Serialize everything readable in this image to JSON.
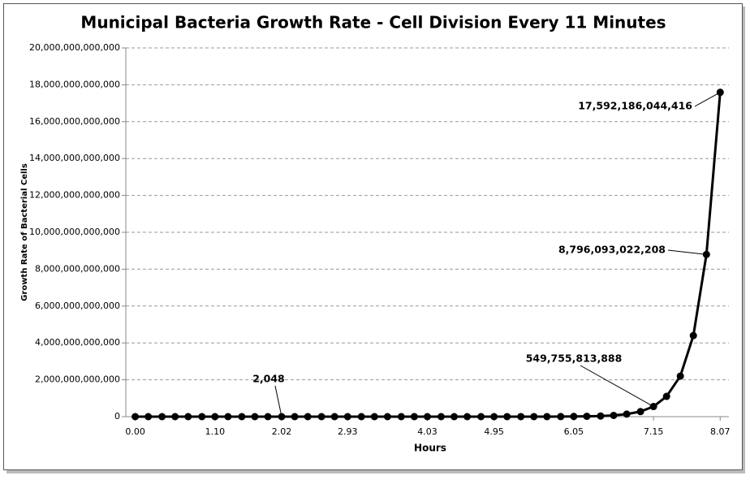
{
  "chart_data": {
    "type": "line",
    "title": "Municipal Bacteria Growth Rate - Cell Division Every 11 Minutes",
    "x_label": "Hours",
    "y_label": "Growth Rate of Bacterial Cells",
    "x": [
      0.0,
      0.18,
      0.37,
      0.55,
      0.73,
      0.92,
      1.1,
      1.28,
      1.47,
      1.65,
      1.83,
      2.02,
      2.2,
      2.38,
      2.57,
      2.75,
      2.93,
      3.12,
      3.3,
      3.48,
      3.67,
      3.85,
      4.03,
      4.22,
      4.4,
      4.58,
      4.77,
      4.95,
      5.13,
      5.32,
      5.5,
      5.68,
      5.87,
      6.05,
      6.23,
      6.42,
      6.6,
      6.78,
      6.97,
      7.15,
      7.33,
      7.52,
      7.7,
      7.88,
      8.07
    ],
    "series": [
      {
        "color": "#000000",
        "values": [
          1,
          2,
          4,
          8,
          16,
          32,
          64,
          128,
          256,
          512,
          1024,
          2048,
          4096,
          8192,
          16384,
          32768,
          65536,
          131072,
          262144,
          524288,
          1048576,
          2097152,
          4194304,
          8388608,
          16777216,
          33554432,
          67108864,
          134217728,
          268435456,
          536870912,
          1073741824,
          2147483648,
          4294967296,
          8589934592,
          17179869184,
          34359738368,
          68719476736,
          137438953472,
          274877906944,
          549755813888,
          1099511627776,
          2199023255552,
          4398046511104,
          8796093022208,
          17592186044416
        ],
        "value_labels": [
          null,
          null,
          null,
          null,
          null,
          null,
          null,
          null,
          null,
          null,
          null,
          "2,048",
          null,
          null,
          null,
          null,
          null,
          null,
          null,
          null,
          null,
          null,
          null,
          null,
          null,
          null,
          null,
          null,
          null,
          null,
          null,
          null,
          null,
          null,
          null,
          null,
          null,
          null,
          null,
          "549,755,813,888",
          null,
          null,
          null,
          "8,796,093,022,208",
          "17,592,186,044,416"
        ]
      }
    ],
    "xlim": [
      -0.13,
      8.19
    ],
    "xticks": [
      {
        "value": 0,
        "label": "0.00"
      },
      {
        "value": 1.1,
        "label": "1.10"
      },
      {
        "value": 2.02,
        "label": "2.02"
      },
      {
        "value": 2.93,
        "label": "2.93"
      },
      {
        "value": 4.03,
        "label": "4.03"
      },
      {
        "value": 4.95,
        "label": "4.95"
      },
      {
        "value": 6.05,
        "label": "6.05"
      },
      {
        "value": 7.15,
        "label": "7.15"
      },
      {
        "value": 8.07,
        "label": "8.07"
      }
    ],
    "ylim": [
      0,
      20000000000000
    ],
    "yticks": [
      0,
      {
        "value": 2000000000000,
        "label": "2,000,000,000,000"
      },
      {
        "value": 4000000000000,
        "label": "4,000,000,000,000"
      },
      {
        "value": 6000000000000,
        "label": "6,000,000,000,000"
      },
      {
        "value": 8000000000000,
        "label": "8,000,000,000,000"
      },
      {
        "value": 10000000000000,
        "label": "10,000,000,000,000"
      },
      {
        "value": 12000000000000,
        "label": "12,000,000,000,000"
      },
      {
        "value": 14000000000000,
        "label": "14,000,000,000,000"
      },
      {
        "value": 16000000000000,
        "label": "16,000,000,000,000"
      },
      {
        "value": 18000000000000,
        "label": "18,000,000,000,000"
      },
      {
        "value": 20000000000000,
        "label": "20,000,000,000,000"
      }
    ],
    "grid": true
  }
}
